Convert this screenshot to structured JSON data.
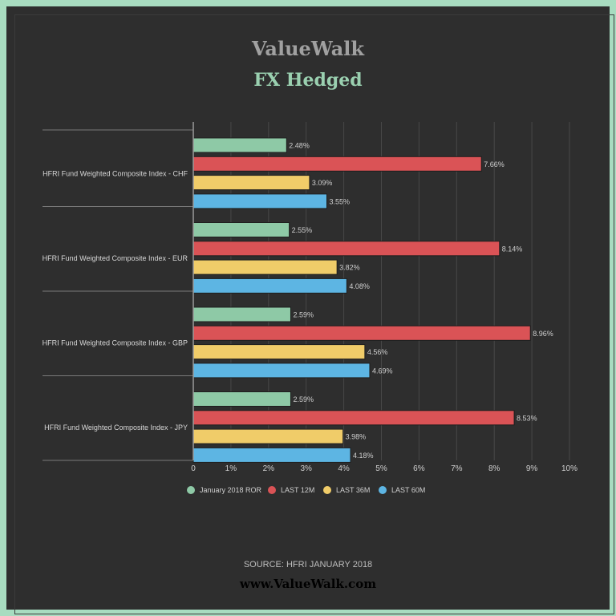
{
  "brand_title": "ValueWalk",
  "source": "SOURCE: HFRI JANUARY 2018",
  "website": "www.ValueWalk.com",
  "colors": {
    "background": "#2e2e2e",
    "border": "#a8dcc0",
    "brand_title": "#a0a0a0",
    "chart_title": "#9ad0b0"
  },
  "chart_data": {
    "type": "bar",
    "orientation": "horizontal",
    "title": "FX Hedged",
    "categories": [
      "HFRI Fund Weighted Composite Index - CHF",
      "HFRI Fund Weighted Composite Index - EUR",
      "HFRI Fund Weighted Composite Index - GBP",
      "HFRI Fund Weighted Composite Index - JPY"
    ],
    "series": [
      {
        "name": "January 2018 ROR",
        "color": "#8ec9a6",
        "values": [
          2.48,
          2.55,
          2.59,
          2.59
        ],
        "labels": [
          "2.48%",
          "2.55%",
          "2.59%",
          "2.59%"
        ]
      },
      {
        "name": "LAST 12M",
        "color": "#da5356",
        "values": [
          7.66,
          8.14,
          8.96,
          8.53
        ],
        "labels": [
          "7.66%",
          "8.14%",
          "8.96%",
          "8.53%"
        ]
      },
      {
        "name": "LAST 36M",
        "color": "#f0cc69",
        "values": [
          3.09,
          3.82,
          4.56,
          3.98
        ],
        "labels": [
          "3.09%",
          "3.82%",
          "4.56%",
          "3.98%"
        ]
      },
      {
        "name": "LAST 60M",
        "color": "#5db5e3",
        "values": [
          3.55,
          4.08,
          4.69,
          4.18
        ],
        "labels": [
          "3.55%",
          "4.08%",
          "4.69%",
          "4.18%"
        ]
      }
    ],
    "xlim": [
      0,
      10
    ],
    "xticks": [
      0,
      1,
      2,
      3,
      4,
      5,
      6,
      7,
      8,
      9,
      10
    ],
    "xtick_labels": [
      "0",
      "1%",
      "2%",
      "3%",
      "4%",
      "5%",
      "6%",
      "7%",
      "8%",
      "9%",
      "10%"
    ],
    "grid": true,
    "legend_position": "bottom"
  }
}
